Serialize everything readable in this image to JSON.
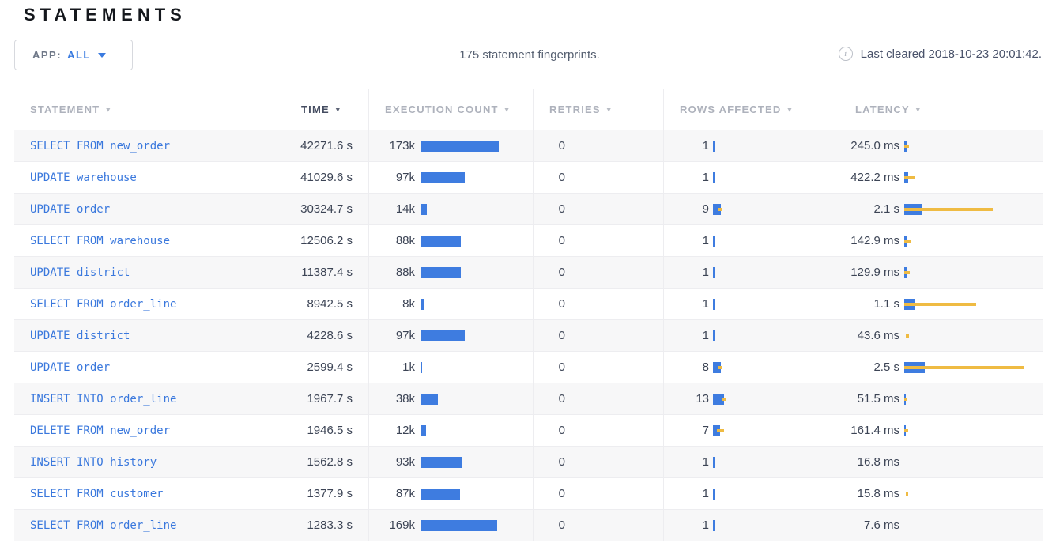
{
  "page": {
    "title": "STATEMENTS"
  },
  "toolbar": {
    "app_filter": {
      "label": "APP:",
      "value": "ALL",
      "caret_icon": "caret-down"
    },
    "summary": "175 statement fingerprints.",
    "info_icon": "i",
    "last_cleared": "Last cleared 2018-10-23 20:01:42."
  },
  "colors": {
    "bar_blue": "#3e7ce0",
    "bar_yellow": "#efbb43",
    "link_blue": "#3a78dd",
    "sorted_header": "#454d61",
    "unsorted_header": "#aeb2bc",
    "row_alt_bg": "#f7f7f8"
  },
  "table": {
    "columns": [
      {
        "label": "STATEMENT",
        "sort_arrow": "▼",
        "sorted": false
      },
      {
        "label": "TIME",
        "sort_arrow": "▼",
        "sorted": true
      },
      {
        "label": "EXECUTION COUNT",
        "sort_arrow": "▼",
        "sorted": false
      },
      {
        "label": "RETRIES",
        "sort_arrow": "▼",
        "sorted": false
      },
      {
        "label": "ROWS AFFECTED",
        "sort_arrow": "▼",
        "sorted": false
      },
      {
        "label": "LATENCY",
        "sort_arrow": "▼",
        "sorted": false
      }
    ],
    "rows": [
      {
        "statement": "SELECT FROM new_order",
        "time": "42271.6 s",
        "exec_count": "173k",
        "exec_bar": 99,
        "retries": "0",
        "rows_affected": "1",
        "rows_bar": {
          "blue": 2,
          "yellow": 0,
          "offset": 0
        },
        "latency": "245.0 ms",
        "lat_bar": {
          "blue": 3,
          "yellow": 6,
          "offset": 0
        }
      },
      {
        "statement": "UPDATE warehouse",
        "time": "41029.6 s",
        "exec_count": "97k",
        "exec_bar": 56,
        "retries": "0",
        "rows_affected": "1",
        "rows_bar": {
          "blue": 2,
          "yellow": 0,
          "offset": 0
        },
        "latency": "422.2 ms",
        "lat_bar": {
          "blue": 5,
          "yellow": 14,
          "offset": 0
        }
      },
      {
        "statement": "UPDATE order",
        "time": "30324.7 s",
        "exec_count": "14k",
        "exec_bar": 8,
        "retries": "0",
        "rows_affected": "9",
        "rows_bar": {
          "blue": 10,
          "yellow": 6,
          "offset": 6
        },
        "latency": "2.1 s",
        "lat_bar": {
          "blue": 23,
          "yellow": 112,
          "offset": 0
        }
      },
      {
        "statement": "SELECT FROM warehouse",
        "time": "12506.2 s",
        "exec_count": "88k",
        "exec_bar": 51,
        "retries": "0",
        "rows_affected": "1",
        "rows_bar": {
          "blue": 2,
          "yellow": 0,
          "offset": 0
        },
        "latency": "142.9 ms",
        "lat_bar": {
          "blue": 3,
          "yellow": 8,
          "offset": 0
        }
      },
      {
        "statement": "UPDATE district",
        "time": "11387.4 s",
        "exec_count": "88k",
        "exec_bar": 51,
        "retries": "0",
        "rows_affected": "1",
        "rows_bar": {
          "blue": 2,
          "yellow": 0,
          "offset": 0
        },
        "latency": "129.9 ms",
        "lat_bar": {
          "blue": 3,
          "yellow": 7,
          "offset": 0
        }
      },
      {
        "statement": "SELECT FROM order_line",
        "time": "8942.5 s",
        "exec_count": "8k",
        "exec_bar": 5,
        "retries": "0",
        "rows_affected": "1",
        "rows_bar": {
          "blue": 2,
          "yellow": 0,
          "offset": 0
        },
        "latency": "1.1 s",
        "lat_bar": {
          "blue": 13,
          "yellow": 91,
          "offset": 0
        }
      },
      {
        "statement": "UPDATE district",
        "time": "4228.6 s",
        "exec_count": "97k",
        "exec_bar": 56,
        "retries": "0",
        "rows_affected": "1",
        "rows_bar": {
          "blue": 2,
          "yellow": 0,
          "offset": 0
        },
        "latency": "43.6 ms",
        "lat_bar": {
          "blue": 0,
          "yellow": 4,
          "offset": 2
        }
      },
      {
        "statement": "UPDATE order",
        "time": "2599.4 s",
        "exec_count": "1k",
        "exec_bar": 2,
        "retries": "0",
        "rows_affected": "8",
        "rows_bar": {
          "blue": 10,
          "yellow": 6,
          "offset": 6
        },
        "latency": "2.5 s",
        "lat_bar": {
          "blue": 26,
          "yellow": 152,
          "offset": 0
        }
      },
      {
        "statement": "INSERT INTO order_line",
        "time": "1967.7 s",
        "exec_count": "38k",
        "exec_bar": 22,
        "retries": "0",
        "rows_affected": "13",
        "rows_bar": {
          "blue": 14,
          "yellow": 5,
          "offset": 11
        },
        "latency": "51.5 ms",
        "lat_bar": {
          "blue": 2,
          "yellow": 3,
          "offset": 0
        }
      },
      {
        "statement": "DELETE FROM new_order",
        "time": "1946.5 s",
        "exec_count": "12k",
        "exec_bar": 7,
        "retries": "0",
        "rows_affected": "7",
        "rows_bar": {
          "blue": 9,
          "yellow": 9,
          "offset": 5
        },
        "latency": "161.4 ms",
        "lat_bar": {
          "blue": 2,
          "yellow": 5,
          "offset": 0
        }
      },
      {
        "statement": "INSERT INTO history",
        "time": "1562.8 s",
        "exec_count": "93k",
        "exec_bar": 53,
        "retries": "0",
        "rows_affected": "1",
        "rows_bar": {
          "blue": 2,
          "yellow": 0,
          "offset": 0
        },
        "latency": "16.8 ms",
        "lat_bar": {
          "blue": 0,
          "yellow": 0,
          "offset": 0
        }
      },
      {
        "statement": "SELECT FROM customer",
        "time": "1377.9 s",
        "exec_count": "87k",
        "exec_bar": 50,
        "retries": "0",
        "rows_affected": "1",
        "rows_bar": {
          "blue": 2,
          "yellow": 0,
          "offset": 0
        },
        "latency": "15.8 ms",
        "lat_bar": {
          "blue": 0,
          "yellow": 3,
          "offset": 2
        }
      },
      {
        "statement": "SELECT FROM order_line",
        "time": "1283.3 s",
        "exec_count": "169k",
        "exec_bar": 97,
        "retries": "0",
        "rows_affected": "1",
        "rows_bar": {
          "blue": 2,
          "yellow": 0,
          "offset": 0
        },
        "latency": "7.6 ms",
        "lat_bar": {
          "blue": 0,
          "yellow": 0,
          "offset": 0
        }
      }
    ]
  }
}
